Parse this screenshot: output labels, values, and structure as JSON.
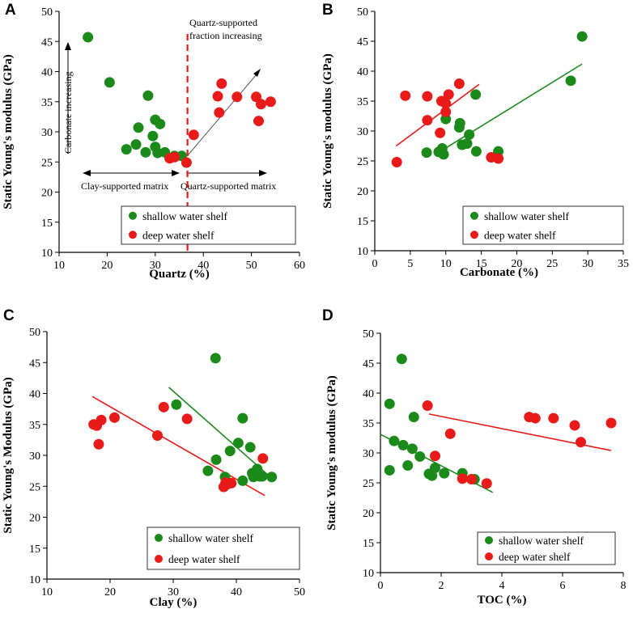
{
  "colors": {
    "shallow": "#1b8a1b",
    "deep": "#e81a1a",
    "axis": "#000000",
    "divider": "#e81a1a"
  },
  "chart_data": [
    {
      "id": "A",
      "type": "scatter",
      "letter": "A",
      "xlabel": "Quartz (%)",
      "ylabel": "Static Young's modulus (GPa)",
      "xlim": [
        10,
        60
      ],
      "ylim": [
        10,
        50
      ],
      "xticks": [
        10,
        20,
        30,
        40,
        50,
        60
      ],
      "yticks": [
        10,
        15,
        20,
        25,
        30,
        35,
        40,
        45,
        50
      ],
      "legend": {
        "position": "bottom-center",
        "entries": [
          "shallow water shelf",
          "deep water shelf"
        ]
      },
      "series": [
        {
          "name": "shallow water shelf",
          "color_key": "shallow",
          "points": [
            [
              16,
              45.7
            ],
            [
              20.5,
              38.2
            ],
            [
              28.5,
              36
            ],
            [
              30,
              32
            ],
            [
              31,
              31.3
            ],
            [
              26.5,
              30.7
            ],
            [
              29.5,
              29.3
            ],
            [
              26,
              27.9
            ],
            [
              24,
              27.1
            ],
            [
              30,
              27.5
            ],
            [
              28,
              26.6
            ],
            [
              30.5,
              26.5
            ],
            [
              32,
              26.6
            ],
            [
              34,
              26
            ],
            [
              35.5,
              26
            ]
          ]
        },
        {
          "name": "deep water shelf",
          "color_key": "deep",
          "points": [
            [
              43.8,
              38
            ],
            [
              43,
              35.9
            ],
            [
              47,
              35.8
            ],
            [
              51,
              35.8
            ],
            [
              54,
              35
            ],
            [
              52,
              34.6
            ],
            [
              43.3,
              33.2
            ],
            [
              51.5,
              31.8
            ],
            [
              38,
              29.5
            ],
            [
              33,
              25.6
            ],
            [
              34,
              25.8
            ],
            [
              36.5,
              24.9
            ]
          ]
        }
      ],
      "divider_x": 36.7,
      "annotations": [
        {
          "text": "Carbonate increasing"
        },
        {
          "text": "Quartz-supported"
        },
        {
          "text": "fraction increasing"
        },
        {
          "text": "Clay-supported matrix"
        },
        {
          "text": "Quartz-supported matrix"
        }
      ]
    },
    {
      "id": "B",
      "type": "scatter",
      "letter": "B",
      "xlabel": "Carbonate (%)",
      "ylabel": "Static Young's modulus (GPa)",
      "xlim": [
        0,
        35
      ],
      "ylim": [
        10,
        50
      ],
      "xticks": [
        0,
        5,
        10,
        15,
        20,
        25,
        30,
        35
      ],
      "yticks": [
        10,
        15,
        20,
        25,
        30,
        35,
        40,
        45,
        50
      ],
      "legend": {
        "position": "bottom-right",
        "entries": [
          "shallow water shelf",
          "deep water shelf"
        ]
      },
      "series": [
        {
          "name": "shallow water shelf",
          "color_key": "shallow",
          "points": [
            [
              29.2,
              45.8
            ],
            [
              27.6,
              38.4
            ],
            [
              14.2,
              36.1
            ],
            [
              10,
              32
            ],
            [
              12,
              31.3
            ],
            [
              11.9,
              30.6
            ],
            [
              13.3,
              29.4
            ],
            [
              12.3,
              27.7
            ],
            [
              13,
              27.9
            ],
            [
              9.5,
              27.1
            ],
            [
              9,
              26.5
            ],
            [
              7.3,
              26.4
            ],
            [
              9.7,
              26.1
            ],
            [
              14.3,
              26.6
            ],
            [
              17.4,
              26.6
            ]
          ]
        },
        {
          "name": "deep water shelf",
          "color_key": "deep",
          "points": [
            [
              4.3,
              35.9
            ],
            [
              7.4,
              35.8
            ],
            [
              10.4,
              36.1
            ],
            [
              11.9,
              37.9
            ],
            [
              9.4,
              35
            ],
            [
              10,
              34.6
            ],
            [
              10,
              33.2
            ],
            [
              7.4,
              31.8
            ],
            [
              9.2,
              29.7
            ],
            [
              3.1,
              24.8
            ],
            [
              16.4,
              25.6
            ],
            [
              17.4,
              25.4
            ]
          ]
        }
      ],
      "trendlines": [
        {
          "color_key": "shallow",
          "x": [
            9.5,
            29.2
          ],
          "y": [
            26.8,
            41.2
          ]
        },
        {
          "color_key": "deep",
          "x": [
            3.0,
            14.7
          ],
          "y": [
            27.5,
            37.8
          ]
        }
      ]
    },
    {
      "id": "C",
      "type": "scatter",
      "letter": "C",
      "xlabel": "Clay (%)",
      "ylabel": "Static Young's Modulus (GPa)",
      "xlim": [
        10,
        50
      ],
      "ylim": [
        10,
        50
      ],
      "xticks": [
        10,
        20,
        30,
        40,
        50
      ],
      "yticks": [
        10,
        15,
        20,
        25,
        30,
        35,
        40,
        45,
        50
      ],
      "legend": {
        "position": "bottom-right",
        "entries": [
          "shallow water shelf",
          "deep water shelf"
        ]
      },
      "series": [
        {
          "name": "shallow water shelf",
          "color_key": "shallow",
          "points": [
            [
              36.7,
              45.7
            ],
            [
              30.5,
              38.2
            ],
            [
              41,
              36
            ],
            [
              40.3,
              32
            ],
            [
              42.2,
              31.3
            ],
            [
              39,
              30.7
            ],
            [
              36.8,
              29.3
            ],
            [
              35.5,
              27.5
            ],
            [
              42.5,
              27.1
            ],
            [
              43.3,
              27.8
            ],
            [
              38.2,
              26.5
            ],
            [
              42.7,
              26.5
            ],
            [
              43.7,
              26.6
            ],
            [
              44.1,
              26.6
            ],
            [
              45.6,
              26.5
            ],
            [
              41,
              25.9
            ]
          ]
        },
        {
          "name": "deep water shelf",
          "color_key": "deep",
          "points": [
            [
              28.5,
              37.8
            ],
            [
              20.7,
              36.1
            ],
            [
              18.6,
              35.7
            ],
            [
              32.2,
              35.9
            ],
            [
              17.4,
              35
            ],
            [
              17.9,
              34.8
            ],
            [
              27.5,
              33.2
            ],
            [
              18.2,
              31.8
            ],
            [
              44.2,
              29.5
            ],
            [
              38.3,
              25.6
            ],
            [
              38.5,
              25.3
            ],
            [
              39.2,
              25.5
            ],
            [
              38,
              24.9
            ]
          ]
        }
      ],
      "trendlines": [
        {
          "color_key": "shallow",
          "x": [
            29.3,
            45.7
          ],
          "y": [
            41,
            26.2
          ]
        },
        {
          "color_key": "deep",
          "x": [
            17.2,
            44.5
          ],
          "y": [
            39.5,
            23.5
          ]
        }
      ]
    },
    {
      "id": "D",
      "type": "scatter",
      "letter": "D",
      "xlabel": "TOC (%)",
      "ylabel": "Static Young's modulus (GPa)",
      "xlim": [
        0,
        8
      ],
      "ylim": [
        10,
        50
      ],
      "xticks": [
        0,
        2,
        4,
        6,
        8
      ],
      "yticks": [
        10,
        15,
        20,
        25,
        30,
        35,
        40,
        45,
        50
      ],
      "legend": {
        "position": "bottom-right",
        "entries": [
          "shallow water shelf",
          "deep water shelf"
        ]
      },
      "series": [
        {
          "name": "shallow water shelf",
          "color_key": "shallow",
          "points": [
            [
              0.7,
              45.7
            ],
            [
              0.3,
              38.2
            ],
            [
              1.1,
              36
            ],
            [
              0.45,
              32
            ],
            [
              0.75,
              31.3
            ],
            [
              1.05,
              30.7
            ],
            [
              1.3,
              29.4
            ],
            [
              0.3,
              27.1
            ],
            [
              0.9,
              27.9
            ],
            [
              1.8,
              27.5
            ],
            [
              2.1,
              26.6
            ],
            [
              1.6,
              26.5
            ],
            [
              1.7,
              26.2
            ],
            [
              2.7,
              26.6
            ],
            [
              3.1,
              25.6
            ]
          ]
        },
        {
          "name": "deep water shelf",
          "color_key": "deep",
          "points": [
            [
              1.55,
              37.9
            ],
            [
              4.9,
              36
            ],
            [
              5.1,
              35.8
            ],
            [
              5.7,
              35.8
            ],
            [
              7.6,
              35
            ],
            [
              6.4,
              34.6
            ],
            [
              2.3,
              33.2
            ],
            [
              6.6,
              31.8
            ],
            [
              1.8,
              29.5
            ],
            [
              2.7,
              25.7
            ],
            [
              3.0,
              25.6
            ],
            [
              3.5,
              24.9
            ]
          ]
        }
      ],
      "trendlines": [
        {
          "color_key": "shallow",
          "x": [
            0,
            3.7
          ],
          "y": [
            33.1,
            23.4
          ]
        },
        {
          "color_key": "deep",
          "x": [
            1.6,
            7.6
          ],
          "y": [
            36.5,
            30.4
          ]
        }
      ]
    }
  ]
}
